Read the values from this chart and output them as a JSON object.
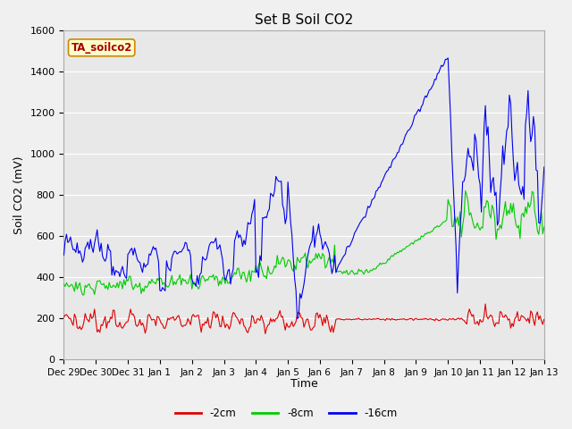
{
  "title": "Set B Soil CO2",
  "ylabel": "Soil CO2 (mV)",
  "xlabel": "Time",
  "ylim": [
    0,
    1600
  ],
  "legend_label": "TA_soilco2",
  "legend_entries": [
    "-2cm",
    "-8cm",
    "-16cm"
  ],
  "line_colors": [
    "#dd0000",
    "#00cc00",
    "#0000ee"
  ],
  "bg_color": "#e8e8e8",
  "fig_bg": "#f0f0f0",
  "grid_color": "#ffffff",
  "title_fontsize": 11,
  "axis_fontsize": 9,
  "tick_fontsize": 8,
  "label_box_color": "#ffffcc",
  "label_box_edge": "#cc8800",
  "label_text_color": "#aa0000"
}
